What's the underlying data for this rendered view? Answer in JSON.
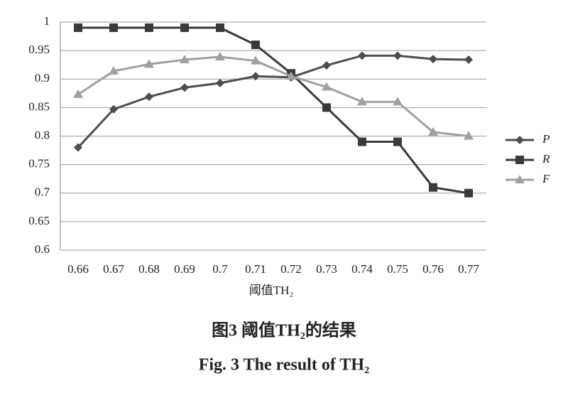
{
  "chart_data": {
    "type": "line",
    "xlabel": "阈值TH₂",
    "caption": [
      "图3 阈值TH₂的结果",
      "Fig. 3 The result of TH₂"
    ],
    "categories": [
      "0.66",
      "0.67",
      "0.68",
      "0.69",
      "0.7",
      "0.71",
      "0.72",
      "0.73",
      "0.74",
      "0.75",
      "0.76",
      "0.77"
    ],
    "series": [
      {
        "name": "P",
        "color": "#4d4d4d",
        "marker": "diamond",
        "values": [
          0.78,
          0.847,
          0.869,
          0.885,
          0.893,
          0.905,
          0.903,
          0.924,
          0.941,
          0.941,
          0.935,
          0.934
        ]
      },
      {
        "name": "R",
        "color": "#3a3a3a",
        "marker": "square",
        "values": [
          0.99,
          0.99,
          0.99,
          0.99,
          0.99,
          0.96,
          0.91,
          0.85,
          0.79,
          0.79,
          0.71,
          0.7
        ]
      },
      {
        "name": "F",
        "color": "#a0a0a0",
        "marker": "triangle",
        "values": [
          0.873,
          0.914,
          0.926,
          0.934,
          0.939,
          0.932,
          0.905,
          0.886,
          0.86,
          0.86,
          0.807,
          0.8
        ]
      }
    ],
    "ylim": [
      0.6,
      1
    ],
    "yticks": [
      0.6,
      0.65,
      0.7,
      0.75,
      0.8,
      0.85,
      0.9,
      0.95,
      1
    ],
    "grid": true,
    "legend": "right"
  }
}
